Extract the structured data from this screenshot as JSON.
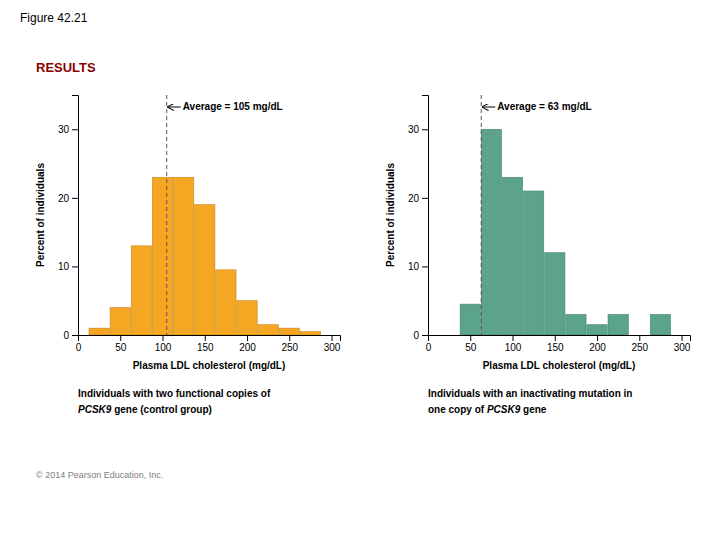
{
  "title": "Figure 42.21",
  "annotations": [
    {
      "text": "RESULTS",
      "color": "#8B0000"
    },
    {
      "text": "© 2014 Pearson Education, Inc.",
      "color": "gray"
    }
  ],
  "chart_data": [
    {
      "type": "bar",
      "x": [
        25,
        50,
        75,
        100,
        125,
        150,
        175,
        200,
        225,
        250,
        275
      ],
      "values": [
        1,
        4,
        13,
        23,
        23,
        19,
        9.5,
        5,
        1.5,
        1,
        0.5
      ],
      "color": "#F5A623",
      "xlabel": "Plasma LDL cholesterol (mg/dL)",
      "ylabel": "Percent of individuals",
      "xlim": [
        0,
        310
      ],
      "ylim": [
        0,
        35
      ],
      "xticks": [
        0,
        50,
        100,
        150,
        200,
        250,
        300
      ],
      "yticks": [
        0,
        10,
        20,
        30
      ],
      "annotations": [
        {
          "x": 105,
          "text": "Average = 105 mg/dL"
        }
      ],
      "caption": [
        [
          {
            "text": "Individuals with two functional copies of"
          }
        ],
        [
          {
            "text": "PCSK9",
            "style": "italic"
          },
          {
            "text": " gene (control group)"
          }
        ]
      ]
    },
    {
      "type": "bar",
      "x": [
        25,
        50,
        75,
        100,
        125,
        150,
        175,
        200,
        225,
        250,
        275
      ],
      "values": [
        0,
        4.5,
        30,
        23,
        21,
        12,
        3,
        1.5,
        3,
        0,
        3
      ],
      "color": "#5BA38A",
      "xlabel": "Plasma LDL cholesterol (mg/dL)",
      "ylabel": "Percent of individuals",
      "xlim": [
        0,
        310
      ],
      "ylim": [
        0,
        35
      ],
      "xticks": [
        0,
        50,
        100,
        150,
        200,
        250,
        300
      ],
      "yticks": [
        0,
        10,
        20,
        30
      ],
      "annotations": [
        {
          "x": 63,
          "text": "Average = 63 mg/dL"
        }
      ],
      "caption": [
        [
          {
            "text": "Individuals with an inactivating mutation in"
          }
        ],
        [
          {
            "text": "one copy of "
          },
          {
            "text": "PCSK9",
            "style": "italic"
          },
          {
            "text": " gene"
          }
        ]
      ]
    }
  ]
}
